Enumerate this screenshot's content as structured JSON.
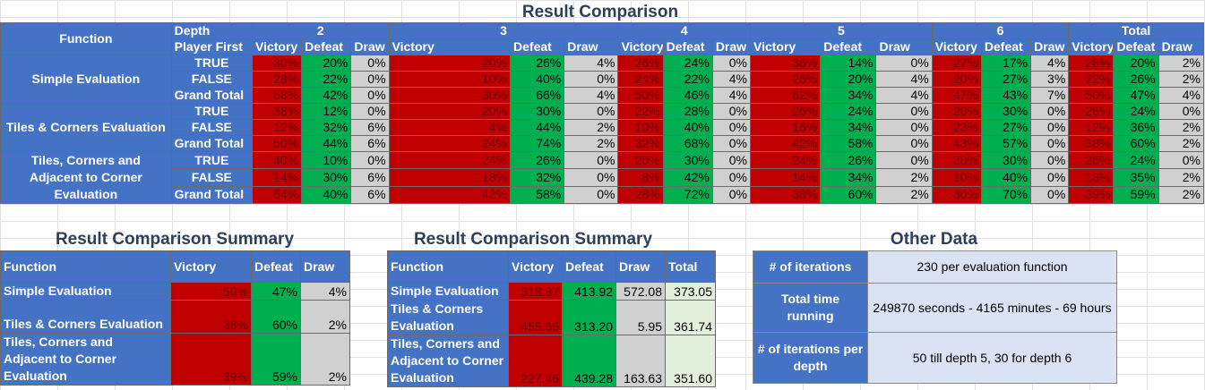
{
  "title": "Result Comparison",
  "main": {
    "function_header": "Function",
    "depth_label": "Depth",
    "player_first_label": "Player First",
    "depths": [
      "2",
      "3",
      "4",
      "5",
      "6",
      "Total"
    ],
    "col_labels": [
      "Victory",
      "Defeat",
      "Draw"
    ],
    "groups": [
      {
        "name": "Simple Evaluation",
        "rows": [
          {
            "label": "TRUE",
            "vals": [
              "30%",
              "20%",
              "0%",
              "20%",
              "26%",
              "4%",
              "26%",
              "24%",
              "0%",
              "36%",
              "14%",
              "0%",
              "27%",
              "17%",
              "4%",
              "28%",
              "20%",
              "2%"
            ]
          },
          {
            "label": "FALSE",
            "vals": [
              "28%",
              "22%",
              "0%",
              "10%",
              "40%",
              "0%",
              "24%",
              "22%",
              "4%",
              "26%",
              "20%",
              "4%",
              "20%",
              "27%",
              "3%",
              "22%",
              "26%",
              "2%"
            ]
          },
          {
            "label": "Grand Total",
            "vals": [
              "58%",
              "42%",
              "0%",
              "30%",
              "66%",
              "4%",
              "50%",
              "46%",
              "4%",
              "62%",
              "34%",
              "4%",
              "47%",
              "43%",
              "7%",
              "50%",
              "47%",
              "4%"
            ]
          }
        ]
      },
      {
        "name": "Tiles & Corners Evaluation",
        "rows": [
          {
            "label": "TRUE",
            "vals": [
              "38%",
              "12%",
              "0%",
              "20%",
              "30%",
              "0%",
              "22%",
              "28%",
              "0%",
              "26%",
              "24%",
              "0%",
              "20%",
              "30%",
              "0%",
              "26%",
              "24%",
              "0%"
            ]
          },
          {
            "label": "FALSE",
            "vals": [
              "12%",
              "32%",
              "6%",
              "4%",
              "44%",
              "2%",
              "10%",
              "40%",
              "0%",
              "16%",
              "34%",
              "0%",
              "23%",
              "27%",
              "0%",
              "12%",
              "36%",
              "2%"
            ]
          },
          {
            "label": "Grand Total",
            "vals": [
              "50%",
              "44%",
              "6%",
              "24%",
              "74%",
              "2%",
              "32%",
              "68%",
              "0%",
              "42%",
              "58%",
              "0%",
              "43%",
              "57%",
              "0%",
              "38%",
              "60%",
              "2%"
            ]
          }
        ]
      },
      {
        "name": "Tiles, Corners and Adjacent to Corner Evaluation",
        "rows": [
          {
            "label": "TRUE",
            "vals": [
              "40%",
              "10%",
              "0%",
              "24%",
              "26%",
              "0%",
              "20%",
              "30%",
              "0%",
              "24%",
              "26%",
              "0%",
              "20%",
              "30%",
              "0%",
              "26%",
              "24%",
              "0%"
            ]
          },
          {
            "label": "FALSE",
            "vals": [
              "14%",
              "30%",
              "6%",
              "18%",
              "32%",
              "0%",
              "8%",
              "42%",
              "0%",
              "14%",
              "34%",
              "2%",
              "10%",
              "40%",
              "0%",
              "13%",
              "35%",
              "2%"
            ]
          },
          {
            "label": "Grand Total",
            "vals": [
              "54%",
              "40%",
              "6%",
              "42%",
              "58%",
              "0%",
              "28%",
              "72%",
              "0%",
              "38%",
              "60%",
              "2%",
              "30%",
              "70%",
              "0%",
              "39%",
              "59%",
              "2%"
            ]
          }
        ]
      }
    ]
  },
  "summary1": {
    "title": "Result Comparison Summary",
    "headers": [
      "Function",
      "Victory",
      "Defeat",
      "Draw"
    ],
    "rows": [
      {
        "name": "Simple Evaluation",
        "vals": [
          "50%",
          "47%",
          "4%"
        ]
      },
      {
        "name": "Tiles & Corners Evaluation",
        "vals": [
          "38%",
          "60%",
          "2%"
        ]
      },
      {
        "name": "Tiles, Corners and Adjacent to Corner Evaluation",
        "vals": [
          "39%",
          "59%",
          "2%"
        ]
      }
    ]
  },
  "summary2": {
    "title": "Result Comparison Summary",
    "headers": [
      "Function",
      "Victory",
      "Defeat",
      "Draw",
      "Total"
    ],
    "rows": [
      {
        "name": "Simple Evaluation",
        "vals": [
          "318.97",
          "413.92",
          "572.08",
          "373.05"
        ]
      },
      {
        "name": "Tiles & Corners Evaluation",
        "vals": [
          "455.66",
          "313.20",
          "5.95",
          "361.74"
        ]
      },
      {
        "name": "Tiles, Corners and Adjacent to Corner Evaluation",
        "vals": [
          "227.46",
          "439.28",
          "163.63",
          "351.60"
        ]
      }
    ]
  },
  "other": {
    "title": "Other Data",
    "rows": [
      {
        "key": "# of iterations",
        "value": "230 per evaluation function"
      },
      {
        "key": "Total time running",
        "value": "249870 seconds - 4165 minutes - 69 hours"
      },
      {
        "key": "# of iterations per depth",
        "value": "50 till depth 5, 30 for depth 6"
      }
    ]
  },
  "colors": {
    "victory": "#c00000",
    "defeat": "#00b050",
    "draw": "#d0d0d0",
    "header": "#4472c4"
  }
}
